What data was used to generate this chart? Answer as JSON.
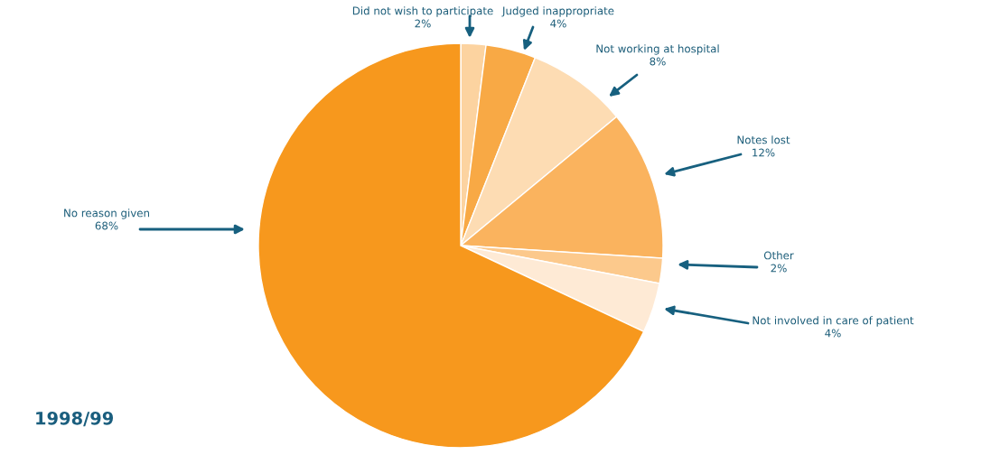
{
  "chart_data": {
    "type": "pie",
    "title": "1998/99",
    "categories": [
      "Did not wish to participate",
      "Judged inappropriate",
      "Not working at hospital",
      "Notes lost",
      "Other",
      "Not involved in care of patient",
      "No reason given"
    ],
    "values": [
      2,
      4,
      8,
      12,
      2,
      4,
      68
    ],
    "value_labels": [
      "2%",
      "4%",
      "8%",
      "12%",
      "2%",
      "4%",
      "68%"
    ],
    "colors": [
      "#fcd3a0",
      "#f8a945",
      "#fddcb3",
      "#fab35e",
      "#fcc98c",
      "#feeAd5",
      "#f7981d"
    ],
    "legend": false
  }
}
